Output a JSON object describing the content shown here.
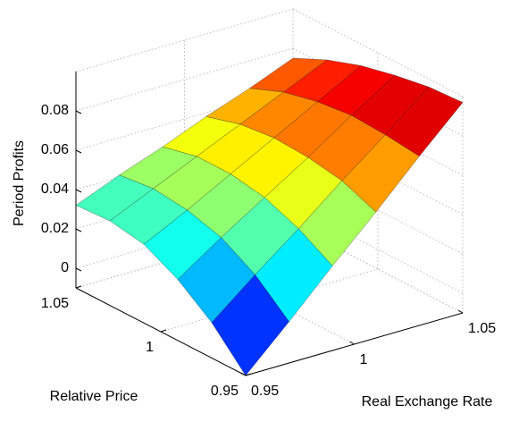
{
  "chart_data": {
    "type": "surface",
    "xlabel": "Real Exchange Rate",
    "ylabel": "Relative Price",
    "zlabel": "Period Profits",
    "x": [
      0.95,
      0.97,
      0.99,
      1.01,
      1.03,
      1.05
    ],
    "y": [
      0.95,
      0.97,
      0.99,
      1.01,
      1.03,
      1.05
    ],
    "z": [
      [
        -0.01,
        0.011,
        0.033,
        0.054,
        0.076,
        0.097
      ],
      [
        0.008,
        0.026,
        0.043,
        0.061,
        0.078,
        0.096
      ],
      [
        0.021,
        0.036,
        0.05,
        0.064,
        0.079,
        0.093
      ],
      [
        0.03,
        0.041,
        0.053,
        0.065,
        0.077,
        0.089
      ],
      [
        0.033,
        0.043,
        0.053,
        0.063,
        0.073,
        0.083
      ],
      [
        0.032,
        0.041,
        0.049,
        0.058,
        0.066,
        0.075
      ]
    ],
    "xlim": [
      0.95,
      1.05
    ],
    "xticks": [
      0.95,
      1,
      1.05
    ],
    "ylim": [
      0.95,
      1.05
    ],
    "yticks": [
      0.95,
      1,
      1.05
    ],
    "zlim": [
      -0.01,
      0.1
    ],
    "zticks": [
      0,
      0.02,
      0.04,
      0.06,
      0.08
    ],
    "colormap": "jet",
    "grid": true
  }
}
